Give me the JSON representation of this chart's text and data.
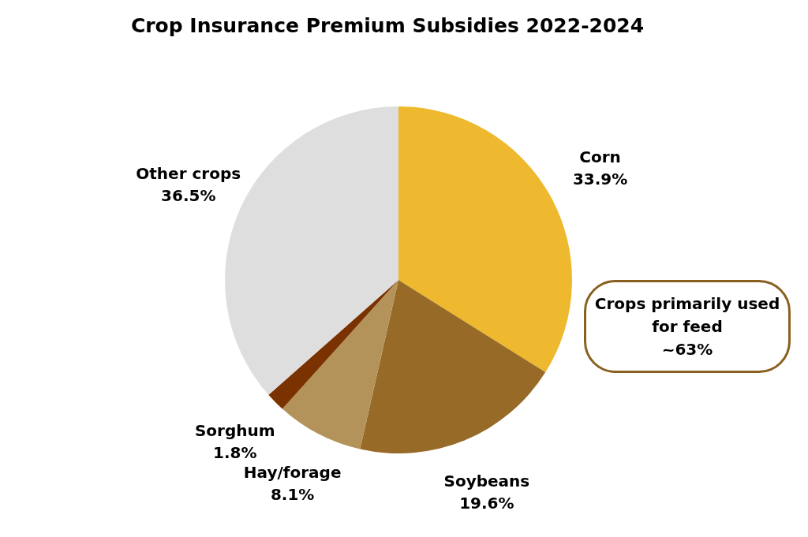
{
  "chart_data": {
    "type": "pie",
    "title": "Crop Insurance Premium Subsidies 2022-2024",
    "categories": [
      "Corn",
      "Soybeans",
      "Hay/forage",
      "Sorghum",
      "Other crops"
    ],
    "values": [
      33.9,
      19.6,
      8.1,
      1.8,
      36.5
    ],
    "value_labels": [
      "33.9%",
      "19.6%",
      "8.1%",
      "1.8%",
      "36.5%"
    ],
    "colors": [
      "#eeb92e",
      "#976a28",
      "#b39359",
      "#7a3200",
      "#dedede"
    ],
    "annotations": [
      "Crops primarily used for feed\n~63%"
    ],
    "legend": false
  }
}
